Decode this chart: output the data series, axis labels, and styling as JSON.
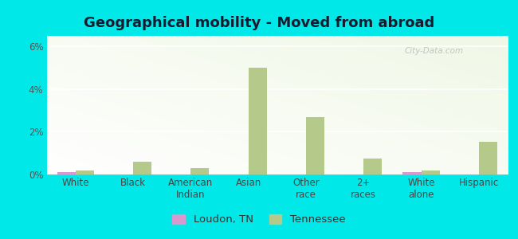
{
  "title": "Geographical mobility - Moved from abroad",
  "categories": [
    "White",
    "Black",
    "American\nIndian",
    "Asian",
    "Other\nrace",
    "2+\nraces",
    "White\nalone",
    "Hispanic"
  ],
  "loudon_values": [
    0.1,
    0.0,
    0.0,
    0.0,
    0.0,
    0.0,
    0.1,
    0.0
  ],
  "tennessee_values": [
    0.2,
    0.6,
    0.3,
    5.0,
    2.7,
    0.75,
    0.2,
    1.55
  ],
  "loudon_color": "#d899cc",
  "tennessee_color": "#b5c98a",
  "ylim": [
    0,
    6.5
  ],
  "yticks": [
    0,
    2,
    4,
    6
  ],
  "ytick_labels": [
    "0%",
    "2%",
    "4%",
    "6%"
  ],
  "chart_bg_top": "#f5faf0",
  "chart_bg_bottom": "#e8f5e0",
  "outer_background": "#00e8e8",
  "bar_width": 0.32,
  "legend_loudon": "Loudon, TN",
  "legend_tennessee": "Tennessee",
  "title_fontsize": 13,
  "tick_fontsize": 8.5,
  "legend_fontsize": 9.5,
  "watermark": "City-Data.com"
}
